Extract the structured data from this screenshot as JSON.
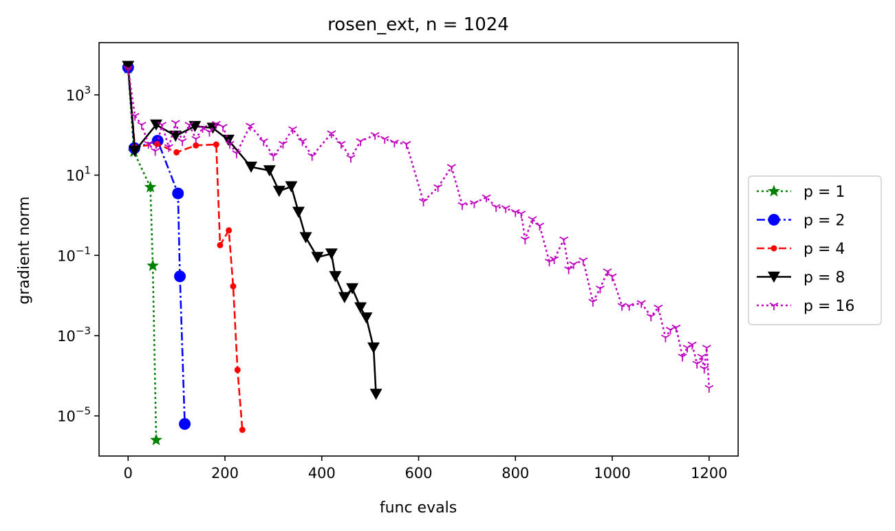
{
  "chart_data": {
    "type": "line",
    "title": "rosen_ext, n = 1024",
    "xlabel": "func evals",
    "ylabel": "gradient norm",
    "xlim": [
      -60,
      1260
    ],
    "ylim": [
      1e-06,
      20000
    ],
    "yscale": "log",
    "xticks": [
      0,
      200,
      400,
      600,
      800,
      1000,
      1200
    ],
    "xtick_labels": [
      "0",
      "200",
      "400",
      "600",
      "800",
      "1000",
      "1200"
    ],
    "yticks": [
      {
        "value": 1000,
        "base": "10",
        "exp": "3"
      },
      {
        "value": 10,
        "base": "10",
        "exp": "1"
      },
      {
        "value": 0.1,
        "base": "10",
        "exp": "−1"
      },
      {
        "value": 0.001,
        "base": "10",
        "exp": "−3"
      },
      {
        "value": 1e-05,
        "base": "10",
        "exp": "−5"
      }
    ],
    "legend_position": "outside-right",
    "grid": false,
    "series": [
      {
        "name": "p = 1",
        "color": "#008000",
        "linestyle": "dotted",
        "marker": "star",
        "x": [
          0,
          12,
          46,
          51,
          58
        ],
        "y": [
          4500,
          38,
          5.0,
          0.055,
          2.5e-06
        ]
      },
      {
        "name": "p = 2",
        "color": "#0000ff",
        "linestyle": "dashdot",
        "marker": "circle",
        "x": [
          0,
          13,
          61,
          103,
          107,
          117
        ],
        "y": [
          4800,
          47,
          72,
          3.5,
          0.03,
          6.3e-06
        ]
      },
      {
        "name": "p = 4",
        "color": "#ff0000",
        "linestyle": "dashed",
        "marker": "dot",
        "x": [
          0,
          14,
          60,
          100,
          140,
          182,
          190,
          208,
          217,
          226,
          236
        ],
        "y": [
          4800,
          50,
          60,
          37,
          55,
          58,
          0.18,
          0.42,
          0.017,
          0.00014,
          4.5e-06
        ]
      },
      {
        "name": "p = 8",
        "color": "#000000",
        "linestyle": "solid",
        "marker": "triangle-down",
        "x": [
          0,
          14,
          58,
          98,
          138,
          175,
          207,
          254,
          292,
          312,
          337,
          352,
          367,
          391,
          420,
          428,
          447,
          463,
          480,
          492,
          507,
          512
        ],
        "y": [
          5200,
          40,
          180,
          95,
          165,
          150,
          75,
          16,
          13,
          4,
          5.2,
          1.2,
          0.28,
          0.09,
          0.11,
          0.03,
          0.009,
          0.015,
          0.005,
          0.0028,
          0.0005,
          3.5e-05
        ],
        "marker_x": [
          0,
          14,
          58,
          98,
          138,
          175,
          207,
          254,
          292,
          312,
          337,
          352,
          367,
          391,
          420,
          428,
          447,
          463,
          480,
          492,
          507,
          512
        ],
        "marker_y": [
          5200,
          40,
          180,
          95,
          165,
          150,
          75,
          16,
          13,
          4,
          5.2,
          1.2,
          0.28,
          0.09,
          0.11,
          0.03,
          0.009,
          0.015,
          0.005,
          0.0028,
          0.0005,
          3.5e-05
        ]
      },
      {
        "name": "p = 16",
        "color": "#bf00bf",
        "linestyle": "dotted",
        "marker": "tri-down",
        "x": [
          0,
          14,
          28,
          42,
          56,
          70,
          84,
          98,
          112,
          126,
          140,
          154,
          168,
          182,
          196,
          210,
          224,
          252,
          280,
          300,
          320,
          340,
          360,
          380,
          420,
          440,
          460,
          480,
          510,
          530,
          550,
          575,
          610,
          640,
          668,
          690,
          715,
          740,
          760,
          780,
          800,
          812,
          820,
          835,
          850,
          870,
          880,
          900,
          910,
          920,
          940,
          960,
          975,
          990,
          1000,
          1020,
          1035,
          1060,
          1080,
          1095,
          1110,
          1120,
          1132,
          1145,
          1155,
          1165,
          1175,
          1185,
          1190,
          1195,
          1200
        ],
        "y": [
          4500,
          300,
          180,
          60,
          40,
          180,
          50,
          200,
          70,
          180,
          80,
          150,
          120,
          190,
          160,
          60,
          35,
          170,
          70,
          30,
          60,
          140,
          70,
          30,
          110,
          60,
          27,
          70,
          100,
          80,
          65,
          60,
          2.2,
          5,
          16,
          1.8,
          2,
          2.8,
          1.6,
          1.5,
          1.2,
          1.1,
          0.25,
          0.8,
          0.55,
          0.07,
          0.08,
          0.25,
          0.045,
          0.06,
          0.075,
          0.007,
          0.015,
          0.04,
          0.03,
          0.0055,
          0.0055,
          0.0065,
          0.003,
          0.005,
          0.0009,
          0.0014,
          0.0016,
          0.0003,
          0.0005,
          0.0006,
          0.0002,
          0.0003,
          0.00015,
          0.0005,
          5e-05
        ]
      }
    ]
  }
}
